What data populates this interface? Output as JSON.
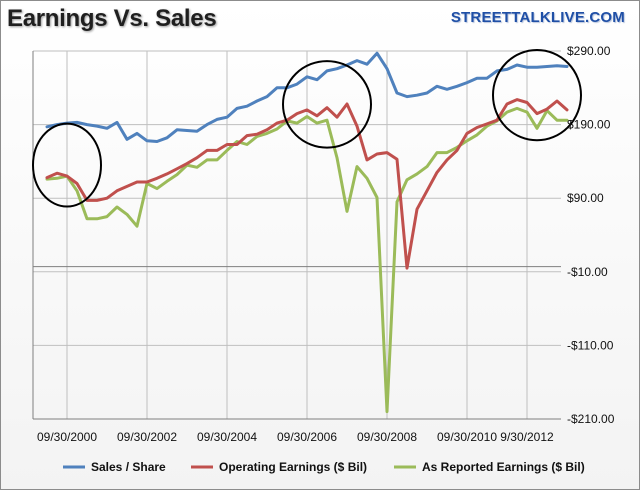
{
  "header": {
    "title": "Earnings Vs. Sales",
    "brand": "STREETTALKLIVE.COM"
  },
  "colors": {
    "sales": "#4f81bd",
    "operating": "#c0504d",
    "reported": "#9bbb59",
    "grid": "#bfbfbf",
    "highlight_ellipse": "#000000"
  },
  "chart_data": {
    "type": "line",
    "title": "Earnings Vs. Sales",
    "xlabel": "",
    "ylabel": "",
    "xlim": [
      0,
      50
    ],
    "ylim": [
      -210,
      290
    ],
    "y_ticks": [
      290,
      190,
      90,
      -10,
      -110,
      -210
    ],
    "y_tick_labels": [
      "$290.00",
      "$190.00",
      "$90.00",
      "-$10.00",
      "-$110.00",
      "-$210.00"
    ],
    "x_ticks": [
      0,
      8,
      16,
      24,
      32,
      40,
      46
    ],
    "x_tick_labels": [
      "09/30/2000",
      "09/30/2002",
      "09/30/2004",
      "09/30/2006",
      "09/30/2008",
      "09/30/2010",
      "9/30/2012"
    ],
    "x_unit": "quarters from 09/30/2000",
    "grid": true,
    "legend_position": "bottom",
    "series": [
      {
        "name": "Sales / Share",
        "color": "#4f81bd",
        "x": [
          -2,
          -1,
          0,
          1,
          2,
          3,
          4,
          5,
          6,
          7,
          8,
          9,
          10,
          11,
          12,
          13,
          14,
          15,
          16,
          17,
          18,
          19,
          20,
          21,
          22,
          23,
          24,
          25,
          26,
          27,
          28,
          29,
          30,
          31,
          32,
          33,
          34,
          35,
          36,
          37,
          38,
          39,
          40,
          41,
          42,
          43,
          44,
          45,
          46,
          47,
          48,
          49,
          50
        ],
        "values": [
          187,
          190,
          192,
          193,
          190,
          188,
          185,
          193,
          170,
          178,
          168,
          167,
          172,
          183,
          182,
          181,
          190,
          197,
          200,
          212,
          215,
          222,
          228,
          240,
          240,
          245,
          255,
          251,
          263,
          266,
          271,
          277,
          272,
          287,
          266,
          233,
          228,
          230,
          233,
          242,
          238,
          242,
          247,
          253,
          253,
          263,
          265,
          271,
          268,
          268,
          269,
          270,
          269
        ]
      },
      {
        "name": "Operating Earnings ($ Bil)",
        "color": "#c0504d",
        "x": [
          -2,
          -1,
          0,
          1,
          2,
          3,
          4,
          5,
          6,
          7,
          8,
          9,
          10,
          11,
          12,
          13,
          14,
          15,
          16,
          17,
          18,
          19,
          20,
          21,
          22,
          23,
          24,
          25,
          26,
          27,
          28,
          29,
          30,
          31,
          32,
          33,
          34,
          35,
          36,
          37,
          38,
          39,
          40,
          41,
          42,
          43,
          44,
          45,
          46,
          47,
          48,
          49,
          50
        ],
        "values": [
          118,
          124,
          120,
          110,
          87,
          87,
          90,
          100,
          106,
          112,
          112,
          117,
          123,
          130,
          137,
          145,
          155,
          155,
          163,
          163,
          175,
          177,
          183,
          192,
          196,
          205,
          210,
          202,
          213,
          200,
          218,
          188,
          142,
          150,
          152,
          143,
          -5,
          75,
          100,
          125,
          142,
          155,
          178,
          186,
          191,
          196,
          218,
          224,
          220,
          205,
          211,
          222,
          210
        ]
      },
      {
        "name": "As Reported Earnings ($ Bil)",
        "color": "#9bbb59",
        "x": [
          -2,
          -1,
          0,
          1,
          2,
          3,
          4,
          5,
          6,
          7,
          8,
          9,
          10,
          11,
          12,
          13,
          14,
          15,
          16,
          17,
          18,
          19,
          20,
          21,
          22,
          23,
          24,
          25,
          26,
          27,
          28,
          29,
          30,
          31,
          32,
          33,
          34,
          35,
          36,
          37,
          38,
          39,
          40,
          41,
          42,
          43,
          44,
          45,
          46,
          47,
          48,
          49,
          50
        ],
        "values": [
          116,
          117,
          120,
          100,
          62,
          62,
          65,
          78,
          68,
          52,
          110,
          103,
          113,
          122,
          135,
          132,
          142,
          142,
          155,
          167,
          163,
          174,
          178,
          184,
          195,
          192,
          201,
          192,
          196,
          145,
          72,
          133,
          117,
          91,
          -200,
          85,
          115,
          123,
          133,
          152,
          152,
          159,
          168,
          176,
          188,
          195,
          207,
          212,
          207,
          185,
          209,
          196,
          196
        ]
      }
    ],
    "annotations": [
      {
        "shape": "ellipse",
        "around_x": [
          -2,
          2
        ],
        "around_y": [
          95,
          175
        ]
      },
      {
        "shape": "ellipse",
        "around_x": [
          23,
          29
        ],
        "around_y": [
          175,
          260
        ]
      },
      {
        "shape": "ellipse",
        "around_x": [
          44,
          50
        ],
        "around_y": [
          185,
          275
        ]
      }
    ]
  }
}
